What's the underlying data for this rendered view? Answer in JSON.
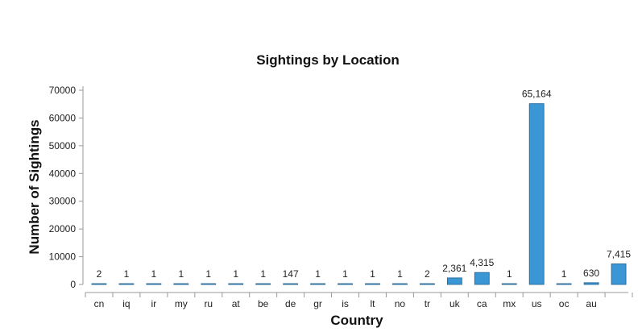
{
  "chart_data": {
    "type": "bar",
    "title": "Sightings by Location",
    "xlabel": "Country",
    "ylabel": "Number of Sightings",
    "ylim": [
      0,
      70000
    ],
    "yticks": [
      "0",
      "10000",
      "20000",
      "30000",
      "40000",
      "50000",
      "60000",
      "70000"
    ],
    "categories": [
      "cn",
      "iq",
      "ir",
      "my",
      "ru",
      "at",
      "be",
      "de",
      "gr",
      "is",
      "lt",
      "no",
      "tr",
      "uk",
      "ca",
      "mx",
      "us",
      "oc",
      "au",
      ""
    ],
    "values": [
      2,
      1,
      1,
      1,
      1,
      1,
      1,
      147,
      1,
      1,
      1,
      1,
      2,
      2361,
      4315,
      1,
      65164,
      1,
      630,
      7415
    ],
    "value_labels": [
      "2",
      "1",
      "1",
      "1",
      "1",
      "1",
      "1",
      "147",
      "1",
      "1",
      "1",
      "1",
      "2",
      "2,361",
      "4,315",
      "1",
      "65,164",
      "1",
      "630",
      "7,415"
    ],
    "bar_color": "#3a96d4",
    "bar_edge_color": "#1f5f8f",
    "grid": false,
    "legend": "none"
  }
}
